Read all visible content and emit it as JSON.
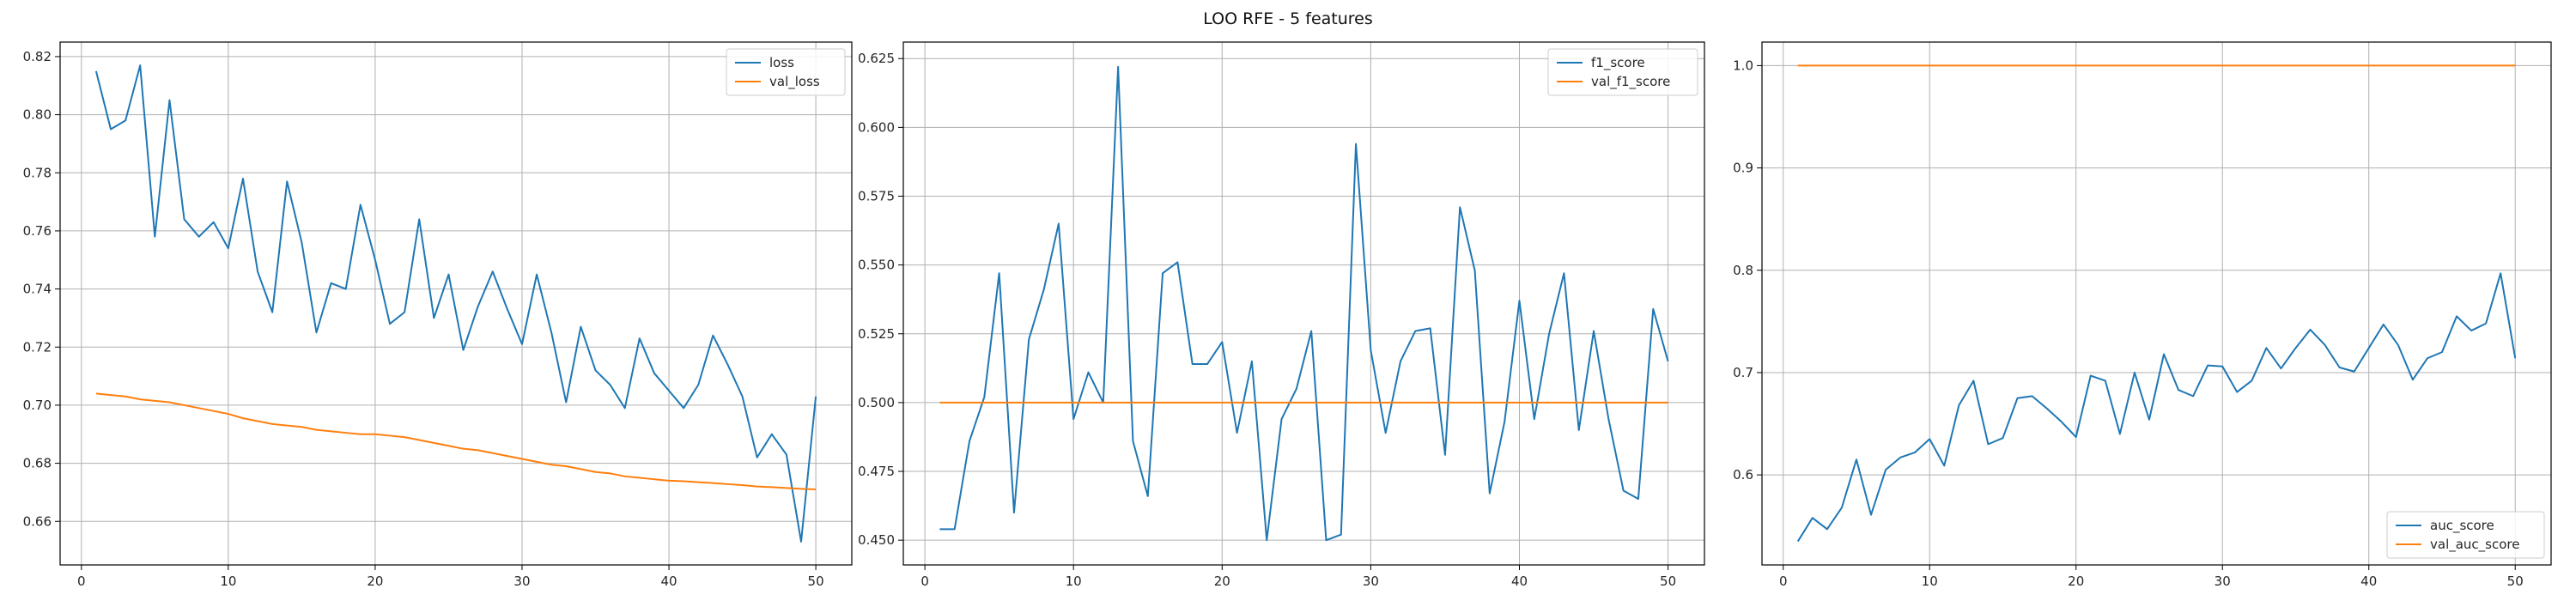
{
  "figure": {
    "title": "LOO RFE - 5 features"
  },
  "chart_data": [
    {
      "type": "line",
      "x": [
        1,
        2,
        3,
        4,
        5,
        6,
        7,
        8,
        9,
        10,
        11,
        12,
        13,
        14,
        15,
        16,
        17,
        18,
        19,
        20,
        21,
        22,
        23,
        24,
        25,
        26,
        27,
        28,
        29,
        30,
        31,
        32,
        33,
        34,
        35,
        36,
        37,
        38,
        39,
        40,
        41,
        42,
        43,
        44,
        45,
        46,
        47,
        48,
        49,
        50
      ],
      "series": [
        {
          "name": "loss",
          "color": "#1f77b4",
          "values": [
            0.815,
            0.795,
            0.798,
            0.817,
            0.758,
            0.805,
            0.764,
            0.758,
            0.763,
            0.754,
            0.778,
            0.746,
            0.732,
            0.777,
            0.756,
            0.725,
            0.742,
            0.74,
            0.769,
            0.75,
            0.728,
            0.732,
            0.764,
            0.73,
            0.745,
            0.719,
            0.734,
            0.746,
            0.733,
            0.721,
            0.745,
            0.725,
            0.701,
            0.727,
            0.712,
            0.707,
            0.699,
            0.723,
            0.711,
            0.705,
            0.699,
            0.707,
            0.724,
            0.714,
            0.703,
            0.682,
            0.69,
            0.683,
            0.653,
            0.703
          ]
        },
        {
          "name": "val_loss",
          "color": "#ff7f0e",
          "values": [
            0.704,
            0.7035,
            0.703,
            0.702,
            0.7015,
            0.701,
            0.7,
            0.699,
            0.698,
            0.697,
            0.6955,
            0.6945,
            0.6935,
            0.693,
            0.6925,
            0.6915,
            0.691,
            0.6905,
            0.69,
            0.69,
            0.6895,
            0.689,
            0.688,
            0.687,
            0.686,
            0.685,
            0.6845,
            0.6835,
            0.6825,
            0.6815,
            0.6805,
            0.6795,
            0.679,
            0.678,
            0.677,
            0.6765,
            0.6755,
            0.675,
            0.6745,
            0.674,
            0.6738,
            0.6735,
            0.6732,
            0.6728,
            0.6725,
            0.672,
            0.6718,
            0.6715,
            0.6712,
            0.671
          ]
        }
      ],
      "x_ticks": [
        0,
        10,
        20,
        30,
        40,
        50
      ],
      "y_ticks": [
        0.66,
        0.68,
        0.7,
        0.72,
        0.74,
        0.76,
        0.78,
        0.8,
        0.82
      ],
      "y_tick_labels": [
        "0.66",
        "0.68",
        "0.70",
        "0.72",
        "0.74",
        "0.76",
        "0.78",
        "0.80",
        "0.82"
      ],
      "xlim": [
        -1.45,
        52.45
      ],
      "ylim": [
        0.645,
        0.825
      ],
      "grid": true,
      "legend_position": "top-right",
      "title": "",
      "xlabel": "",
      "ylabel": ""
    },
    {
      "type": "line",
      "x": [
        1,
        2,
        3,
        4,
        5,
        6,
        7,
        8,
        9,
        10,
        11,
        12,
        13,
        14,
        15,
        16,
        17,
        18,
        19,
        20,
        21,
        22,
        23,
        24,
        25,
        26,
        27,
        28,
        29,
        30,
        31,
        32,
        33,
        34,
        35,
        36,
        37,
        38,
        39,
        40,
        41,
        42,
        43,
        44,
        45,
        46,
        47,
        48,
        49,
        50
      ],
      "series": [
        {
          "name": "f1_score",
          "color": "#1f77b4",
          "values": [
            0.454,
            0.454,
            0.486,
            0.502,
            0.547,
            0.46,
            0.523,
            0.541,
            0.565,
            0.494,
            0.511,
            0.5,
            0.622,
            0.486,
            0.466,
            0.547,
            0.551,
            0.514,
            0.514,
            0.522,
            0.489,
            0.515,
            0.45,
            0.494,
            0.505,
            0.526,
            0.45,
            0.452,
            0.594,
            0.519,
            0.489,
            0.515,
            0.526,
            0.527,
            0.481,
            0.571,
            0.548,
            0.467,
            0.493,
            0.537,
            0.494,
            0.525,
            0.547,
            0.49,
            0.526,
            0.494,
            0.468,
            0.465,
            0.534,
            0.515
          ]
        },
        {
          "name": "val_f1_score",
          "color": "#ff7f0e",
          "values": [
            0.5,
            0.5,
            0.5,
            0.5,
            0.5,
            0.5,
            0.5,
            0.5,
            0.5,
            0.5,
            0.5,
            0.5,
            0.5,
            0.5,
            0.5,
            0.5,
            0.5,
            0.5,
            0.5,
            0.5,
            0.5,
            0.5,
            0.5,
            0.5,
            0.5,
            0.5,
            0.5,
            0.5,
            0.5,
            0.5,
            0.5,
            0.5,
            0.5,
            0.5,
            0.5,
            0.5,
            0.5,
            0.5,
            0.5,
            0.5,
            0.5,
            0.5,
            0.5,
            0.5,
            0.5,
            0.5,
            0.5,
            0.5,
            0.5,
            0.5
          ]
        }
      ],
      "x_ticks": [
        0,
        10,
        20,
        30,
        40,
        50
      ],
      "y_ticks": [
        0.45,
        0.475,
        0.5,
        0.525,
        0.55,
        0.575,
        0.6,
        0.625
      ],
      "y_tick_labels": [
        "0.450",
        "0.475",
        "0.500",
        "0.525",
        "0.550",
        "0.575",
        "0.600",
        "0.625"
      ],
      "xlim": [
        -1.45,
        52.45
      ],
      "ylim": [
        0.441,
        0.631
      ],
      "grid": true,
      "legend_position": "top-right",
      "title": "",
      "xlabel": "",
      "ylabel": ""
    },
    {
      "type": "line",
      "x": [
        1,
        2,
        3,
        4,
        5,
        6,
        7,
        8,
        9,
        10,
        11,
        12,
        13,
        14,
        15,
        16,
        17,
        18,
        19,
        20,
        21,
        22,
        23,
        24,
        25,
        26,
        27,
        28,
        29,
        30,
        31,
        32,
        33,
        34,
        35,
        36,
        37,
        38,
        39,
        40,
        41,
        42,
        43,
        44,
        45,
        46,
        47,
        48,
        49,
        50
      ],
      "series": [
        {
          "name": "auc_score",
          "color": "#1f77b4",
          "values": [
            0.535,
            0.558,
            0.547,
            0.568,
            0.615,
            0.561,
            0.605,
            0.617,
            0.622,
            0.635,
            0.609,
            0.668,
            0.692,
            0.63,
            0.636,
            0.675,
            0.677,
            0.665,
            0.652,
            0.637,
            0.697,
            0.692,
            0.64,
            0.7,
            0.654,
            0.718,
            0.683,
            0.677,
            0.707,
            0.706,
            0.681,
            0.692,
            0.724,
            0.704,
            0.724,
            0.742,
            0.727,
            0.705,
            0.701,
            0.724,
            0.747,
            0.727,
            0.693,
            0.714,
            0.72,
            0.755,
            0.741,
            0.748,
            0.797,
            0.714
          ]
        },
        {
          "name": "val_auc_score",
          "color": "#ff7f0e",
          "values": [
            1.0,
            1.0,
            1.0,
            1.0,
            1.0,
            1.0,
            1.0,
            1.0,
            1.0,
            1.0,
            1.0,
            1.0,
            1.0,
            1.0,
            1.0,
            1.0,
            1.0,
            1.0,
            1.0,
            1.0,
            1.0,
            1.0,
            1.0,
            1.0,
            1.0,
            1.0,
            1.0,
            1.0,
            1.0,
            1.0,
            1.0,
            1.0,
            1.0,
            1.0,
            1.0,
            1.0,
            1.0,
            1.0,
            1.0,
            1.0,
            1.0,
            1.0,
            1.0,
            1.0,
            1.0,
            1.0,
            1.0,
            1.0,
            1.0,
            1.0
          ]
        }
      ],
      "x_ticks": [
        0,
        10,
        20,
        30,
        40,
        50
      ],
      "y_ticks": [
        0.6,
        0.7,
        0.8,
        0.9,
        1.0
      ],
      "y_tick_labels": [
        "0.6",
        "0.7",
        "0.8",
        "0.9",
        "1.0"
      ],
      "xlim": [
        -1.45,
        52.45
      ],
      "ylim": [
        0.512,
        1.023
      ],
      "grid": true,
      "legend_position": "bottom-right",
      "title": "",
      "xlabel": "",
      "ylabel": ""
    }
  ]
}
